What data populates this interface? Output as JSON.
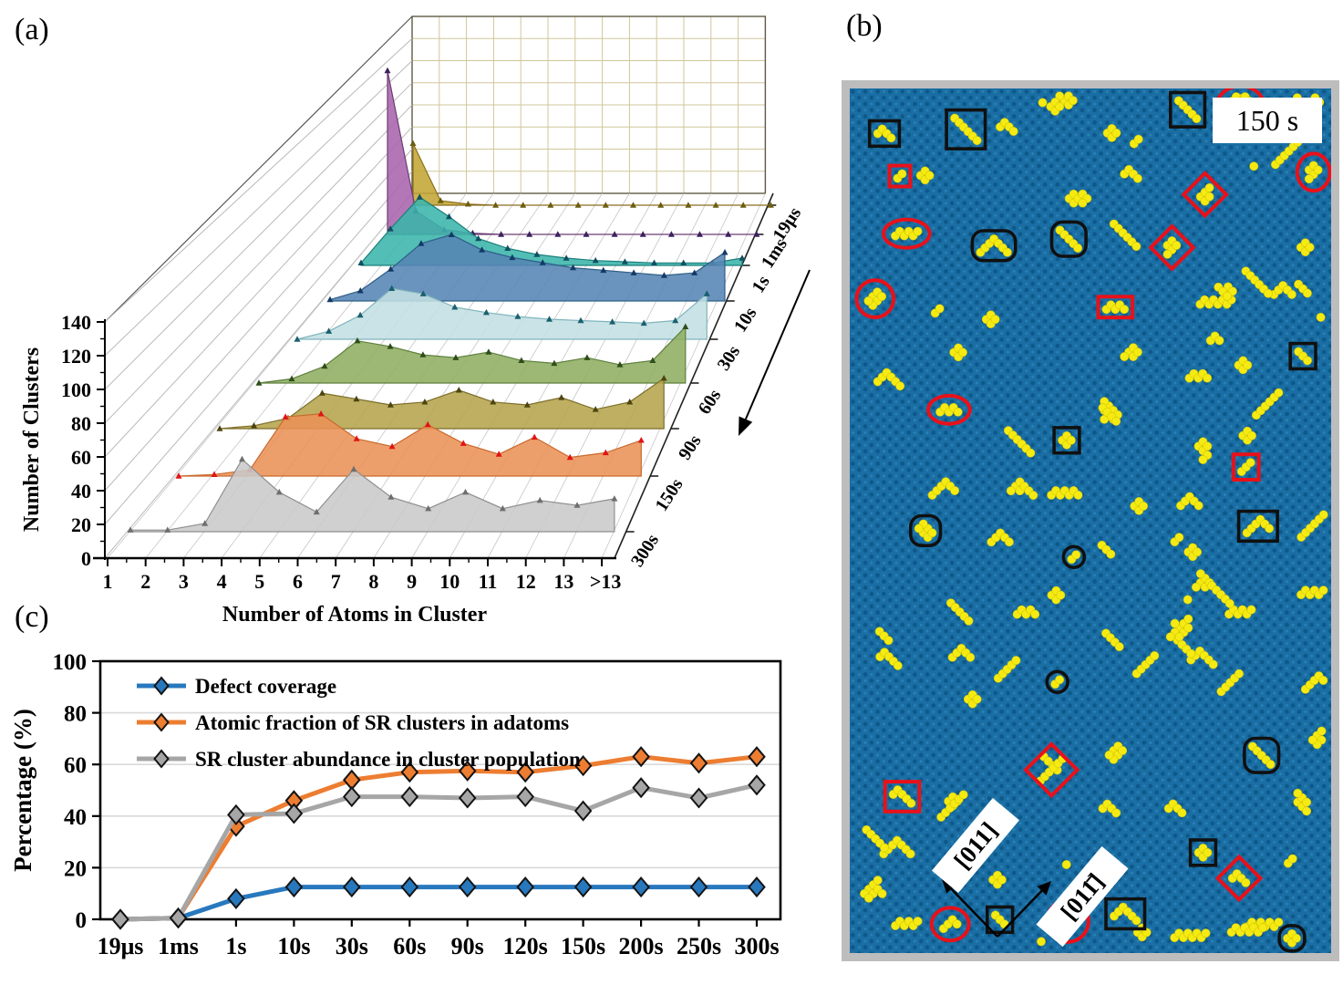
{
  "figure": {
    "panel_a_label": "(a)",
    "panel_b_label": "(b)",
    "panel_c_label": "(c)"
  },
  "chart_data": [
    {
      "id": "panel_a",
      "type": "area",
      "subtype": "3d-waterfall",
      "xlabel": "Number of Atoms in Cluster",
      "ylabel": "Number of Clusters",
      "x_ticks": [
        "1",
        "2",
        "3",
        "4",
        "5",
        "6",
        "7",
        "8",
        "9",
        "10",
        "11",
        "12",
        "13",
        ">13"
      ],
      "y_ticks": [
        0,
        20,
        40,
        60,
        80,
        100,
        120,
        140
      ],
      "ylim": [
        0,
        160
      ],
      "grid": "on",
      "depth_axis_front_to_back": [
        "300s",
        "150s",
        "90s",
        "60s",
        "30s",
        "10s",
        "1s",
        "1ms",
        "19μs"
      ],
      "series": [
        {
          "name": "300s",
          "fill": "#c9c9c9",
          "edge": "#8f8f8f",
          "marker": "#6e6e6e",
          "values": [
            1,
            1,
            5,
            44,
            24,
            12,
            38,
            21,
            14,
            24,
            14,
            19,
            16,
            20
          ]
        },
        {
          "name": "150s",
          "fill": "#eb9257",
          "edge": "#c96a2e",
          "marker": "#e01414",
          "values": [
            0,
            1,
            4,
            38,
            40,
            24,
            19,
            33,
            21,
            14,
            25,
            12,
            15,
            23
          ]
        },
        {
          "name": "90s",
          "fill": "#b5a44c",
          "edge": "#7d6f2a",
          "marker": "#4d4410",
          "values": [
            0,
            2,
            7,
            24,
            20,
            16,
            18,
            26,
            18,
            16,
            21,
            13,
            18,
            34
          ]
        },
        {
          "name": "60s",
          "fill": "#8fae62",
          "edge": "#5d7f3c",
          "marker": "#2f4d1a",
          "values": [
            0,
            3,
            12,
            30,
            26,
            20,
            18,
            22,
            16,
            14,
            18,
            13,
            16,
            40
          ]
        },
        {
          "name": "30s",
          "fill": "#c3dfe3",
          "edge": "#7fb5bd",
          "marker": "#1a5f6e",
          "values": [
            0,
            6,
            18,
            38,
            34,
            24,
            20,
            17,
            15,
            14,
            13,
            12,
            14,
            34
          ]
        },
        {
          "name": "10s",
          "fill": "#5585b4",
          "edge": "#2f5e87",
          "marker": "#123a66",
          "values": [
            1,
            8,
            25,
            45,
            52,
            40,
            34,
            30,
            26,
            24,
            22,
            20,
            22,
            38
          ]
        },
        {
          "name": "1s",
          "fill": "#3ab5ab",
          "edge": "#1d7f7a",
          "marker": "#104f62",
          "values": [
            2,
            30,
            56,
            40,
            22,
            14,
            9,
            6,
            4,
            3,
            2,
            2,
            2,
            6
          ]
        },
        {
          "name": "1ms",
          "fill": "#a964ad",
          "edge": "#6b3d72",
          "marker": "#3d2060",
          "values": [
            140,
            20,
            4,
            1,
            0,
            0,
            0,
            0,
            0,
            0,
            0,
            0,
            0,
            0
          ]
        },
        {
          "name": "19μs",
          "fill": "#c3a636",
          "edge": "#8a6d1c",
          "marker": "#6b5d10",
          "values": [
            55,
            4,
            1,
            0,
            0,
            0,
            0,
            0,
            0,
            0,
            0,
            0,
            0,
            0
          ]
        }
      ]
    },
    {
      "id": "panel_c",
      "type": "line",
      "categories": [
        "19μs",
        "1ms",
        "1s",
        "10s",
        "30s",
        "60s",
        "90s",
        "120s",
        "150s",
        "200s",
        "250s",
        "300s"
      ],
      "ylabel": "Percentage (%)",
      "ylim": [
        0,
        100
      ],
      "y_ticks": [
        0,
        20,
        40,
        60,
        80,
        100
      ],
      "grid": "horizontal",
      "legend_position": "top-left-inside",
      "series": [
        {
          "name": "Defect coverage",
          "color": "#2878BE",
          "values": [
            0,
            0.5,
            8,
            12.5,
            12.5,
            12.5,
            12.5,
            12.5,
            12.5,
            12.5,
            12.5,
            12.5
          ]
        },
        {
          "name": "Atomic fraction of SR clusters in adatoms",
          "color": "#ED7D31",
          "values": [
            0,
            0.5,
            36,
            46,
            54,
            57,
            57.5,
            57,
            59.5,
            63,
            60.5,
            63
          ]
        },
        {
          "name": "SR cluster abundance in cluster population",
          "color": "#A6A6A6",
          "values": [
            0,
            0.5,
            40.5,
            41,
            47.5,
            47.5,
            47,
            47.5,
            42,
            51,
            47,
            52
          ]
        }
      ]
    }
  ],
  "panel_b": {
    "time_label": "150 s",
    "direction_label_1": "[011]",
    "direction_label_2": "[011̄]",
    "substrate_color": "#1a6ea3",
    "substrate_dot_color": "#0b5587",
    "adatom_color": "#f5ea12",
    "annotation_red": "#e8111a",
    "annotation_black": "#101010",
    "annotation_shapes": [
      "red-ellipse",
      "red-diamond",
      "red-rectangle",
      "black-rectangle",
      "black-rounded-rectangle"
    ]
  }
}
